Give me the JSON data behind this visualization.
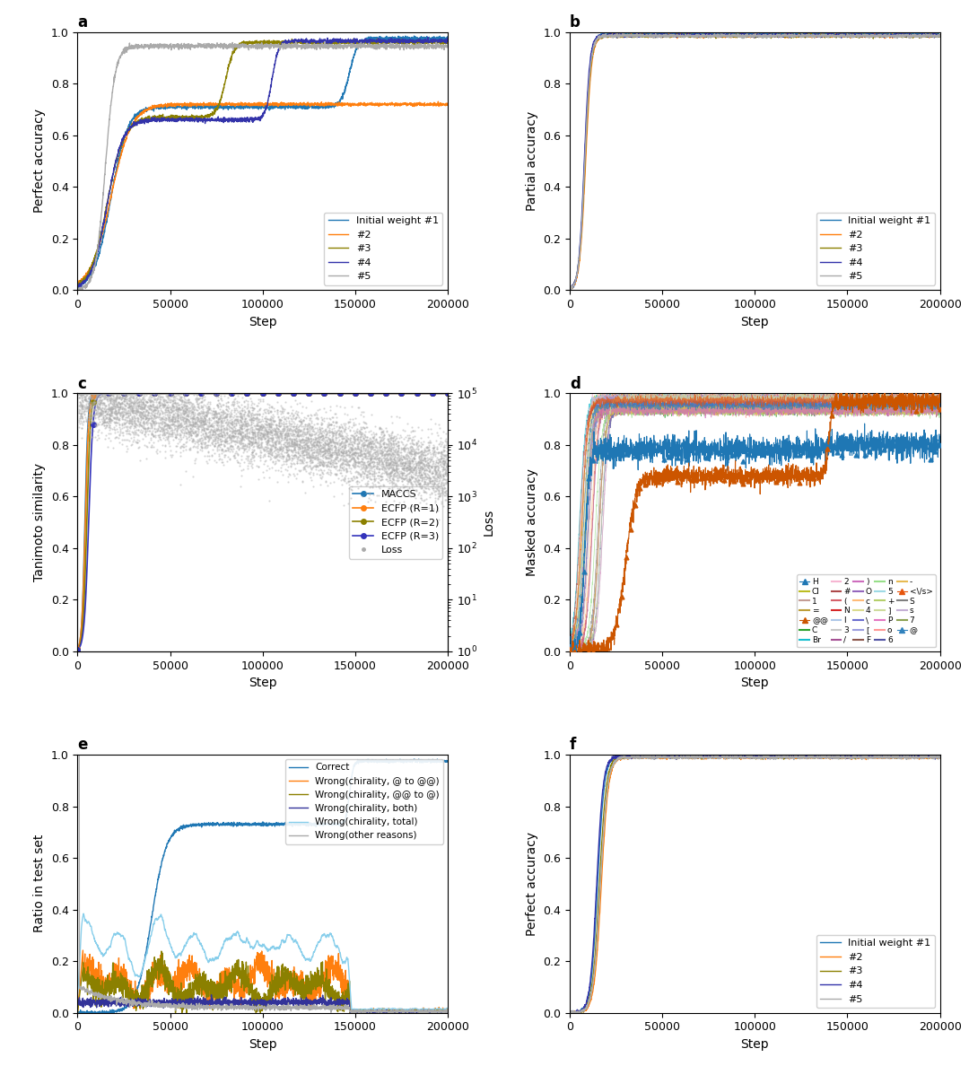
{
  "panel_a": {
    "title": "a",
    "xlabel": "Step",
    "ylabel": "Perfect accuracy",
    "legend_labels": [
      "Initial weight #1",
      "#2",
      "#3",
      "#4",
      "#5"
    ],
    "colors": [
      "#1f77b4",
      "#ff7f0e",
      "#8B8000",
      "#3333aa",
      "#aaaaaa"
    ]
  },
  "panel_b": {
    "title": "b",
    "xlabel": "Step",
    "ylabel": "Partial accuracy",
    "legend_labels": [
      "Initial weight #1",
      "#2",
      "#3",
      "#4",
      "#5"
    ],
    "colors": [
      "#1f77b4",
      "#ff7f0e",
      "#8B8000",
      "#3333aa",
      "#aaaaaa"
    ]
  },
  "panel_c": {
    "title": "c",
    "xlabel": "Step",
    "ylabel": "Tanimoto similarity",
    "ylabel2": "Loss",
    "legend_labels": [
      "MACCS",
      "ECFP (R=1)",
      "ECFP (R=2)",
      "ECFP (R=3)",
      "Loss"
    ],
    "colors": [
      "#1f77b4",
      "#ff7f0e",
      "#8B8000",
      "#3333bb",
      "#aaaaaa"
    ]
  },
  "panel_d": {
    "title": "d",
    "xlabel": "Step",
    "ylabel": "Masked accuracy",
    "token_labels": [
      "H",
      "C",
      "N",
      "O",
      "F",
      "P",
      "S",
      "Cl",
      "Br",
      "I",
      "c",
      "n",
      "o",
      "s",
      "1",
      "2",
      "3",
      "4",
      "5",
      "6",
      "7",
      "=",
      "#",
      "/",
      "\\",
      "+",
      "-",
      "(",
      ")",
      "[",
      "]",
      "@",
      "@@",
      "</s>"
    ],
    "col1_labels": [
      "H",
      "C",
      "N",
      "O",
      "F",
      "P",
      "S"
    ],
    "col2_labels": [
      "Cl",
      "Br",
      "I",
      "c",
      "n",
      "o",
      "s"
    ],
    "col3_labels": [
      "1",
      "2",
      "3",
      "4",
      "5",
      "6",
      "7"
    ],
    "col4_labels": [
      "=",
      "#",
      "/",
      "\\",
      "+",
      "-",
      "@"
    ],
    "col5_labels": [
      "@@",
      "(",
      ")",
      "[",
      "]",
      "</s>",
      "@"
    ]
  },
  "panel_e": {
    "title": "e",
    "xlabel": "Step",
    "ylabel": "Ratio in test set",
    "legend_labels": [
      "Correct",
      "Wrong(chirality, @ to @@)",
      "Wrong(chirality, @@ to @)",
      "Wrong(chirality, both)",
      "Wrong(chirality, total)",
      "Wrong(other reasons)"
    ],
    "colors": [
      "#1f77b4",
      "#ff7f0e",
      "#8B8000",
      "#333399",
      "#87CEEB",
      "#aaaaaa"
    ]
  },
  "panel_f": {
    "title": "f",
    "xlabel": "Step",
    "ylabel": "Perfect accuracy",
    "legend_labels": [
      "Initial weight #1",
      "#2",
      "#3",
      "#4",
      "#5"
    ],
    "colors": [
      "#1f77b4",
      "#ff7f0e",
      "#8B8000",
      "#3333aa",
      "#aaaaaa"
    ]
  }
}
